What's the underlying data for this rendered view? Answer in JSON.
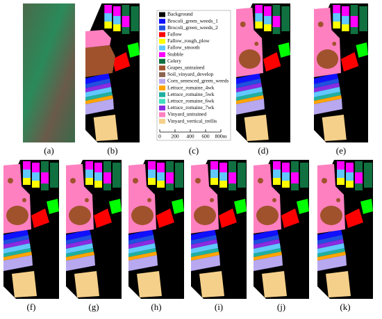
{
  "panels": {
    "labels": [
      "(a)",
      "(b)",
      "(c)",
      "(d)",
      "(e)",
      "(f)",
      "(g)",
      "(h)",
      "(i)",
      "(j)",
      "(k)"
    ]
  },
  "legend": {
    "items": [
      {
        "label": "Background",
        "color": "#000000"
      },
      {
        "label": "Brocoli_green_weeds_1",
        "color": "#1010ff"
      },
      {
        "label": "Brocoli_green_weeds_2",
        "color": "#2050e0"
      },
      {
        "label": "Fallow",
        "color": "#ff0000"
      },
      {
        "label": "Fallow_rough_plow",
        "color": "#ffff00"
      },
      {
        "label": "Fallow_smooth",
        "color": "#60c8ff"
      },
      {
        "label": "Stubble",
        "color": "#ff00ff"
      },
      {
        "label": "Celery",
        "color": "#107040"
      },
      {
        "label": "Grapes_untrained",
        "color": "#a0522d"
      },
      {
        "label": "Soil_vinyard_develop",
        "color": "#8c6450"
      },
      {
        "label": "Corn_senesced_green_weeds",
        "color": "#b8a8f0"
      },
      {
        "label": "Lettuce_romaine_4wk",
        "color": "#ffa500"
      },
      {
        "label": "Lettuce_romaine_5wk",
        "color": "#20b0a0"
      },
      {
        "label": "Lettuce_romaine_6wk",
        "color": "#40e0c0"
      },
      {
        "label": "Lettuce_romaine_7wk",
        "color": "#8a2be2"
      },
      {
        "label": "Vinyard_untrained",
        "color": "#ff80c0"
      },
      {
        "label": "Vinyard_vertical_trellis",
        "color": "#f5d08a"
      }
    ]
  },
  "scale_bar": {
    "labels": [
      "0",
      "200",
      "400",
      "600",
      "800m"
    ]
  }
}
